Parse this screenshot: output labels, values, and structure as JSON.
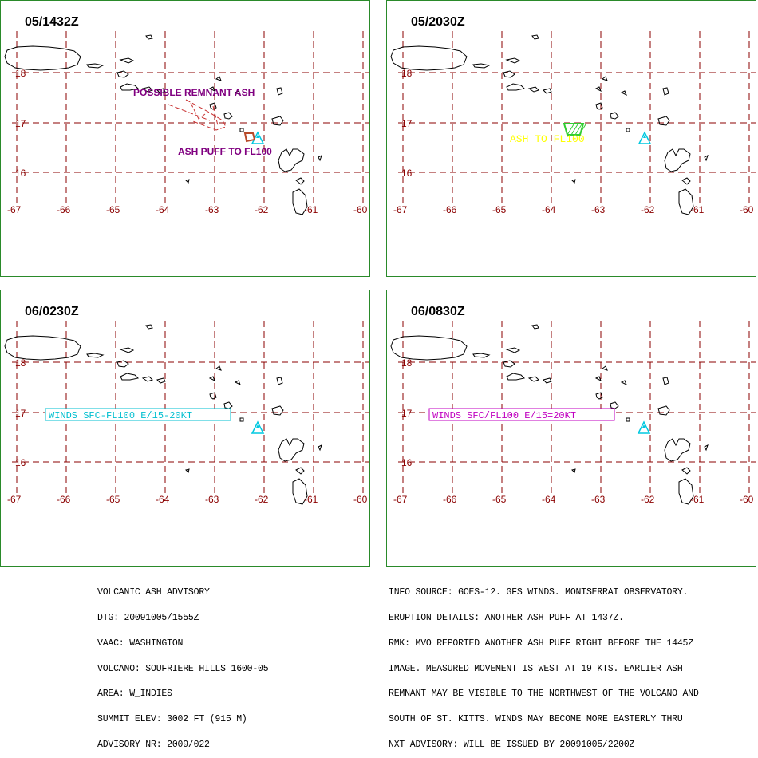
{
  "grid": {
    "lat_labels": [
      "18",
      "17",
      "16"
    ],
    "lon_labels": [
      "-67",
      "-66",
      "-65",
      "-64",
      "-63",
      "-62",
      "-61",
      "-60"
    ],
    "grid_color": "#8b0000",
    "label_color": "#8b0000"
  },
  "panels": [
    {
      "time": "05/1432Z",
      "annotations": [
        {
          "text": "POSSIBLE REMNANT ASH",
          "color": "#800080"
        },
        {
          "text": "ASH PUFF TO FL100",
          "color": "#800080"
        }
      ]
    },
    {
      "time": "05/2030Z",
      "annotations": [
        {
          "text": "ASH TO FL100",
          "color": "#ffff00"
        }
      ]
    },
    {
      "time": "06/0230Z",
      "annotations": [
        {
          "text": "WINDS SFC-FL100 E/15-20KT",
          "color": "#00bfd0"
        }
      ]
    },
    {
      "time": "06/0830Z",
      "annotations": [
        {
          "text": "WINDS SFC/FL100 E/15=20KT",
          "color": "#c000c0"
        }
      ]
    }
  ],
  "advisory_left": [
    "VOLCANIC ASH ADVISORY",
    "DTG: 20091005/1555Z",
    "VAAC: WASHINGTON",
    "VOLCANO: SOUFRIERE HILLS 1600-05",
    "AREA: W_INDIES",
    "SUMMIT ELEV: 3002 FT (915 M)",
    "ADVISORY NR: 2009/022"
  ],
  "advisory_right": [
    "INFO SOURCE: GOES-12. GFS WINDS. MONTSERRAT OBSERVATORY.",
    "ERUPTION DETAILS: ANOTHER ASH PUFF AT 1437Z.",
    "RMK: MVO REPORTED ANOTHER ASH PUFF RIGHT BEFORE THE 1445Z",
    "IMAGE. MEASURED MOVEMENT IS WEST AT 19 KTS. EARLIER ASH",
    "REMNANT MAY BE VISIBLE TO THE NORTHWEST OF THE VOLCANO AND",
    "SOUTH OF ST. KITTS. WINDS MAY BECOME MORE EASTERLY THRU",
    "NXT ADVISORY: WILL BE ISSUED BY 20091005/2200Z"
  ],
  "colors": {
    "border": "#2a8a2a",
    "volcano": "#00c8e0",
    "ash_outline_p1": "#b84a2a",
    "ash_polygon_p2": "#32cd32"
  },
  "icons": [
    "volcano-icon"
  ]
}
